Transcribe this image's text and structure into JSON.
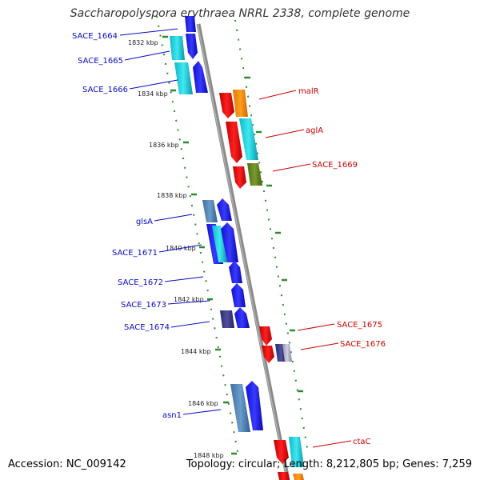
{
  "title": "Saccharopolyspora erythraea NRRL 2338, complete genome",
  "footer": {
    "accession": "Accession: NC_009142",
    "summary": "Topology: circular; Length: 8,212,805 bp; Genes: 7,259"
  },
  "colors": {
    "forward_label": "#0a0ac8",
    "reverse_label": "#cc0000",
    "backbone": "#8a8a8a",
    "ruler_dots": "#2f8a2f"
  },
  "ticks": [
    {
      "label": "1832 kbp"
    },
    {
      "label": "1834 kbp"
    },
    {
      "label": "1836 kbp"
    },
    {
      "label": "1838 kbp"
    },
    {
      "label": "1840 kbp"
    },
    {
      "label": "1842 kbp"
    },
    {
      "label": "1844 kbp"
    },
    {
      "label": "1846 kbp"
    },
    {
      "label": "1848 kbp"
    }
  ],
  "forward_genes": [
    {
      "label": "SACE_1664"
    },
    {
      "label": "SACE_1665"
    },
    {
      "label": "SACE_1666"
    },
    {
      "label": "glsA"
    },
    {
      "label": "SACE_1671"
    },
    {
      "label": "SACE_1672"
    },
    {
      "label": "SACE_1673"
    },
    {
      "label": "SACE_1674"
    },
    {
      "label": "asn1"
    }
  ],
  "reverse_genes": [
    {
      "label": "malR"
    },
    {
      "label": "aglA"
    },
    {
      "label": "SACE_1669"
    },
    {
      "label": "SACE_1675"
    },
    {
      "label": "SACE_1676"
    },
    {
      "label": "ctaC"
    }
  ]
}
